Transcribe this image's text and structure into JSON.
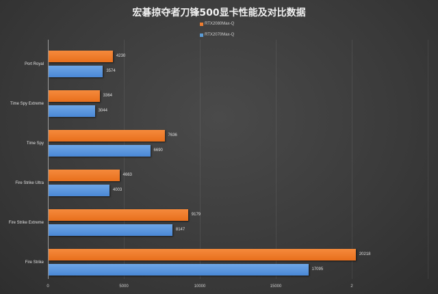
{
  "chart_data": {
    "type": "bar",
    "orientation": "horizontal",
    "title": "宏碁掠夺者刀锋500显卡性能及对比数据",
    "categories": [
      "Port Royal",
      "Time Spy Extreme",
      "Time Spy",
      "Fire Strike Ultra",
      "Fire Strike Extreme",
      "Fire Strike"
    ],
    "series": [
      {
        "name": "RTX2080Max-Q",
        "color": "#ed7d31",
        "values": [
          4230,
          3364,
          7636,
          4663,
          9179,
          20218
        ]
      },
      {
        "name": "RTX2070Max-Q",
        "color": "#5b9bd5",
        "values": [
          3574,
          3044,
          6690,
          4003,
          8147,
          17095
        ]
      }
    ],
    "xlabel": "",
    "ylabel": "",
    "xlim": [
      0,
      25000
    ],
    "x_ticks": [
      "0",
      "5000",
      "10000",
      "15000",
      "2"
    ],
    "grid": true,
    "legend_position": "top"
  },
  "title": "宏碁掠夺者刀锋500显卡性能及对比数据",
  "legend": [
    {
      "label": "RTX2080Max-Q",
      "color": "#ed7d31"
    },
    {
      "label": "RTX2070Max-Q",
      "color": "#5b9bd5"
    }
  ],
  "rows": [
    {
      "label": "Port Royal",
      "a": "4230",
      "b": "3574"
    },
    {
      "label": "Time Spy Extreme",
      "a": "3364",
      "b": "3044"
    },
    {
      "label": "Time Spy",
      "a": "7636",
      "b": "6690"
    },
    {
      "label": "Fire Strike Ultra",
      "a": "4663",
      "b": "4003"
    },
    {
      "label": "Fire Strike Extreme",
      "a": "9179",
      "b": "8147"
    },
    {
      "label": "Fire Strike",
      "a": "20218",
      "b": "17095"
    }
  ],
  "ticks": [
    "0",
    "5000",
    "10000",
    "15000",
    "2"
  ]
}
